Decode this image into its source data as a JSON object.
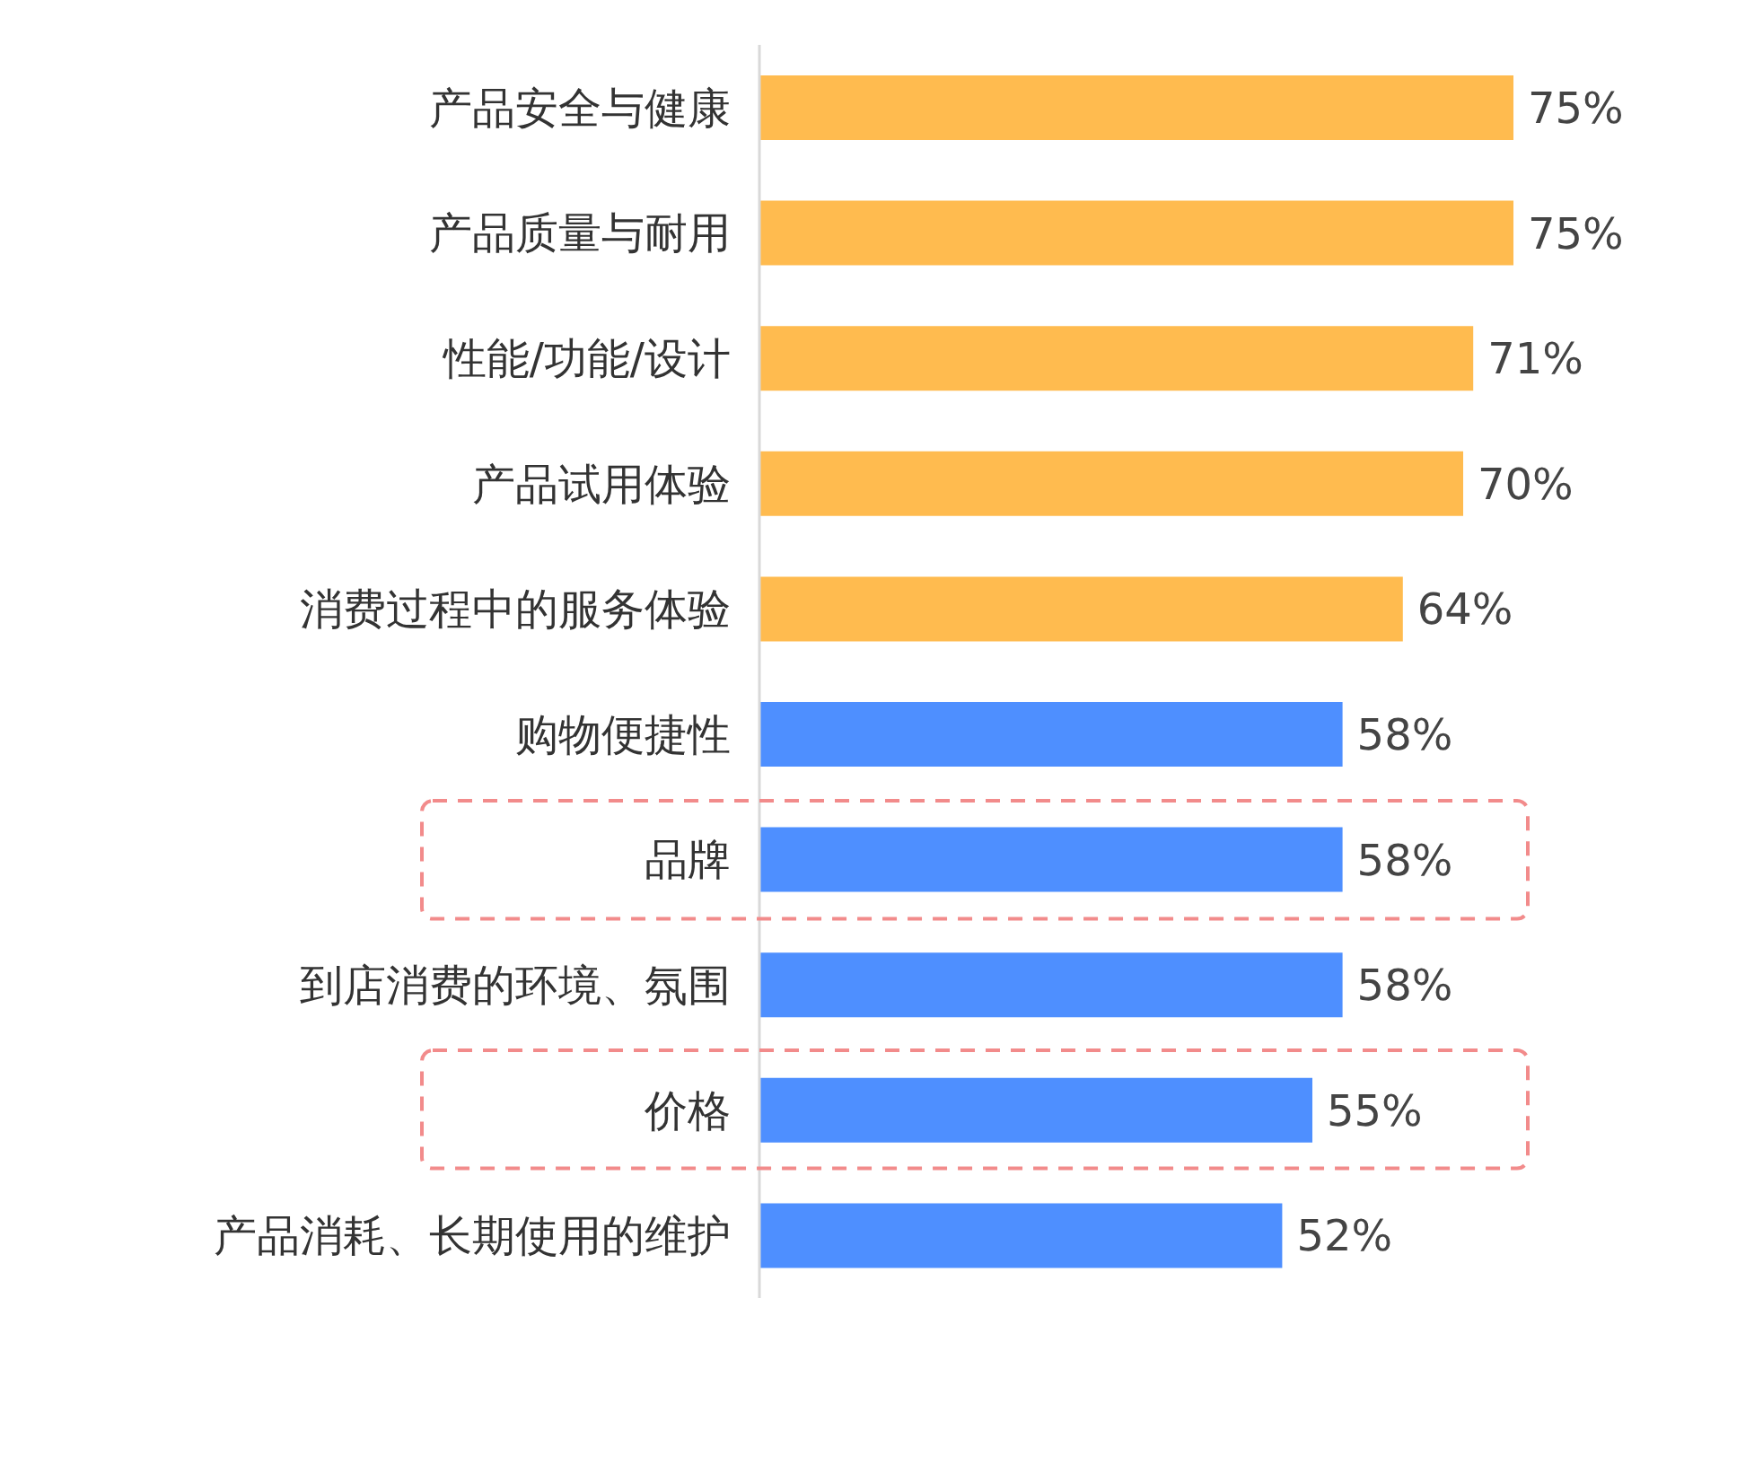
{
  "chart_data": {
    "type": "bar",
    "orientation": "horizontal",
    "categories": [
      "产品安全与健康",
      "产品质量与耐用",
      "性能/功能/设计",
      "产品试用体验",
      "消费过程中的服务体验",
      "购物便捷性",
      "品牌",
      "到店消费的环境、氛围",
      "价格",
      "产品消耗、长期使用的维护"
    ],
    "values": [
      75,
      75,
      71,
      70,
      64,
      58,
      58,
      58,
      55,
      52
    ],
    "value_labels": [
      "75%",
      "75%",
      "71%",
      "70%",
      "64%",
      "58%",
      "58%",
      "58%",
      "55%",
      "52%"
    ],
    "colors": [
      "#ffbb4f",
      "#ffbb4f",
      "#ffbb4f",
      "#ffbb4f",
      "#ffbb4f",
      "#4e8fff",
      "#4e8fff",
      "#4e8fff",
      "#4e8fff",
      "#4e8fff"
    ]
  }
}
